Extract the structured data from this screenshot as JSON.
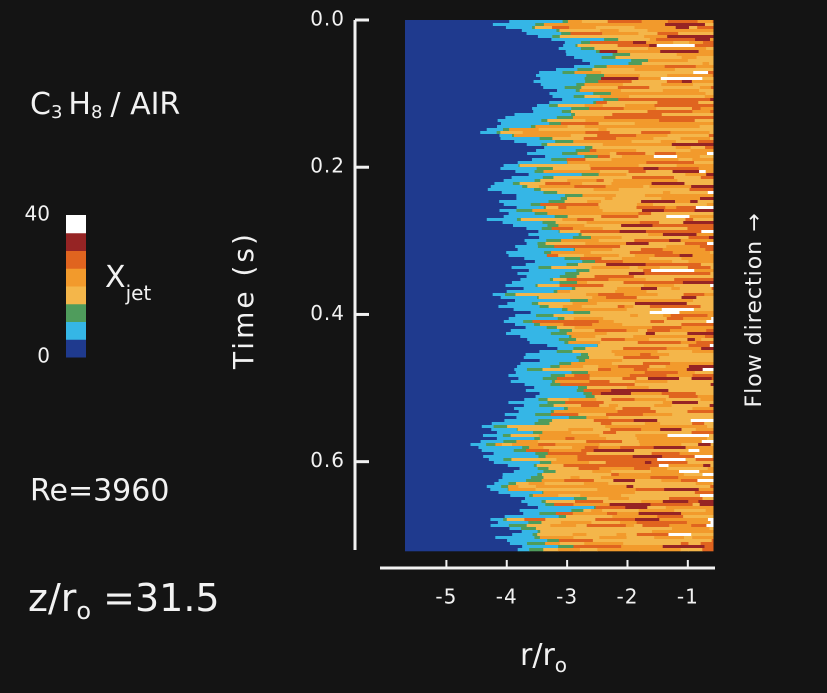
{
  "chart_data": {
    "type": "heatmap",
    "species": [
      "C",
      "3",
      "H",
      "8",
      "/ AIR"
    ],
    "colorbar": {
      "label": [
        "X",
        "jet"
      ],
      "ticks": [
        0,
        40
      ],
      "colors": [
        "#1f3a8e",
        "#35b6e6",
        "#4f9c5c",
        "#f4b64a",
        "#f29a2c",
        "#e0641f",
        "#962424",
        "#ffffff"
      ]
    },
    "reynolds": "Re=3960",
    "position": [
      "z/r",
      "o",
      " =31.5"
    ],
    "y_label": "Time (s)",
    "x_label": [
      "r/r",
      "o"
    ],
    "flow_label": "Flow direction →",
    "ylim": [
      0,
      0.72
    ],
    "yticks": [
      {
        "value": 0,
        "label": "0.0"
      },
      0.2,
      0.4,
      0.6
    ],
    "xlim": [
      -6.1,
      -0.55
    ],
    "xticks": [
      -5,
      -4,
      -3,
      -2,
      -1
    ]
  }
}
